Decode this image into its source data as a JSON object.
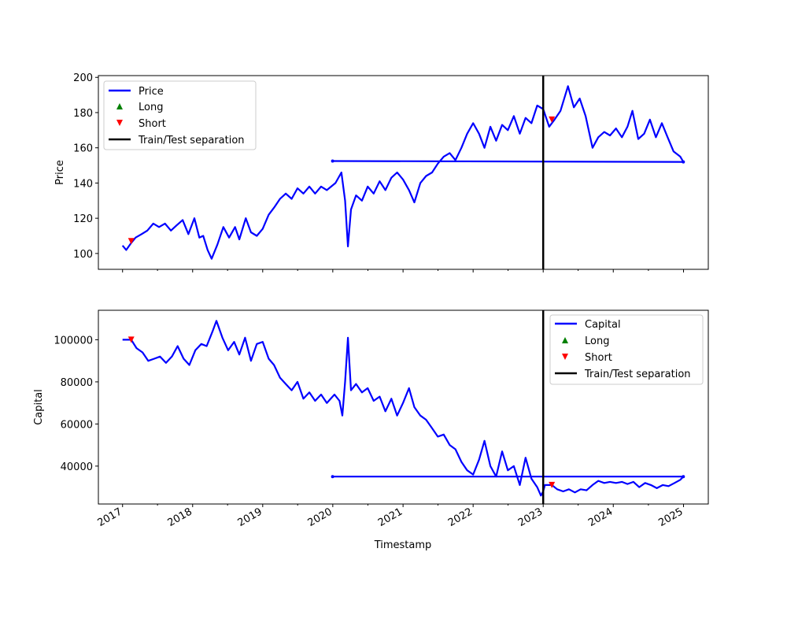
{
  "chart_data": [
    {
      "type": "line",
      "title": "",
      "xlabel": "",
      "ylabel": "Price",
      "xlim": [
        "2016-08-28",
        "2025-05-10"
      ],
      "ylim": [
        91,
        201
      ],
      "yticks": [
        100,
        120,
        140,
        160,
        180,
        200
      ],
      "xticks": [
        "2017-01-01",
        "2018-01-01",
        "2019-01-01",
        "2020-01-01",
        "2021-01-01",
        "2022-01-01",
        "2023-01-01",
        "2024-01-01",
        "2025-01-01"
      ],
      "xtick_labels": [],
      "grid": false,
      "legend_position": "upper left",
      "legend": [
        "Price",
        "Long",
        "Short",
        "Train/Test separation"
      ],
      "series": [
        {
          "name": "Price",
          "color": "#0000ff",
          "points": [
            [
              "2017-01-01",
              104.5
            ],
            [
              "2017-01-20",
              102
            ],
            [
              "2017-02-15",
              106
            ],
            [
              "2017-03-10",
              109
            ],
            [
              "2017-04-10",
              111
            ],
            [
              "2017-05-10",
              113
            ],
            [
              "2017-06-10",
              117
            ],
            [
              "2017-07-10",
              115
            ],
            [
              "2017-08-10",
              117
            ],
            [
              "2017-09-10",
              113
            ],
            [
              "2017-10-10",
              116
            ],
            [
              "2017-11-10",
              119
            ],
            [
              "2017-12-10",
              111
            ],
            [
              "2018-01-10",
              120
            ],
            [
              "2018-02-05",
              109
            ],
            [
              "2018-02-25",
              110
            ],
            [
              "2018-03-20",
              102
            ],
            [
              "2018-04-10",
              97
            ],
            [
              "2018-05-10",
              105
            ],
            [
              "2018-06-10",
              115
            ],
            [
              "2018-07-10",
              109
            ],
            [
              "2018-08-10",
              115
            ],
            [
              "2018-09-01",
              108
            ],
            [
              "2018-10-05",
              120
            ],
            [
              "2018-11-01",
              112
            ],
            [
              "2018-12-01",
              110
            ],
            [
              "2019-01-01",
              114
            ],
            [
              "2019-02-01",
              122
            ],
            [
              "2019-03-01",
              126
            ],
            [
              "2019-04-01",
              131
            ],
            [
              "2019-05-01",
              134
            ],
            [
              "2019-06-01",
              131
            ],
            [
              "2019-07-01",
              137
            ],
            [
              "2019-08-01",
              134
            ],
            [
              "2019-09-01",
              138
            ],
            [
              "2019-10-01",
              134
            ],
            [
              "2019-11-01",
              138
            ],
            [
              "2019-12-01",
              136
            ],
            [
              "2020-01-15",
              140
            ],
            [
              "2020-02-15",
              146
            ],
            [
              "2020-03-05",
              130
            ],
            [
              "2020-03-20",
              104
            ],
            [
              "2020-04-05",
              125
            ],
            [
              "2020-05-01",
              133
            ],
            [
              "2020-06-01",
              130
            ],
            [
              "2020-07-01",
              138
            ],
            [
              "2020-08-01",
              134
            ],
            [
              "2020-09-01",
              141
            ],
            [
              "2020-10-01",
              136
            ],
            [
              "2020-11-01",
              143
            ],
            [
              "2020-12-01",
              146
            ],
            [
              "2021-01-01",
              142
            ],
            [
              "2021-02-01",
              136
            ],
            [
              "2021-03-01",
              129
            ],
            [
              "2021-04-01",
              140
            ],
            [
              "2021-05-01",
              144
            ],
            [
              "2021-06-01",
              146
            ],
            [
              "2021-07-01",
              151
            ],
            [
              "2021-08-01",
              155
            ],
            [
              "2021-09-01",
              157
            ],
            [
              "2021-10-01",
              153
            ],
            [
              "2021-11-01",
              160
            ],
            [
              "2021-12-01",
              168
            ],
            [
              "2022-01-01",
              174
            ],
            [
              "2022-02-01",
              168
            ],
            [
              "2022-03-01",
              160
            ],
            [
              "2022-04-01",
              172
            ],
            [
              "2022-05-01",
              164
            ],
            [
              "2022-06-01",
              173
            ],
            [
              "2022-07-01",
              170
            ],
            [
              "2022-08-01",
              178
            ],
            [
              "2022-09-01",
              168
            ],
            [
              "2022-10-01",
              177
            ],
            [
              "2022-11-01",
              174
            ],
            [
              "2022-12-01",
              184
            ],
            [
              "2023-01-01",
              182
            ],
            [
              "2023-02-01",
              172
            ],
            [
              "2023-03-01",
              176
            ],
            [
              "2023-04-01",
              181
            ],
            [
              "2023-05-10",
              195
            ],
            [
              "2023-06-10",
              183
            ],
            [
              "2023-07-10",
              188
            ],
            [
              "2023-08-10",
              178
            ],
            [
              "2023-09-15",
              160
            ],
            [
              "2023-10-15",
              166
            ],
            [
              "2023-11-15",
              169
            ],
            [
              "2023-12-15",
              167
            ],
            [
              "2024-01-15",
              171
            ],
            [
              "2024-02-15",
              166
            ],
            [
              "2024-03-15",
              172
            ],
            [
              "2024-04-10",
              181
            ],
            [
              "2024-05-10",
              165
            ],
            [
              "2024-06-10",
              168
            ],
            [
              "2024-07-10",
              176
            ],
            [
              "2024-08-10",
              166
            ],
            [
              "2024-09-10",
              174
            ],
            [
              "2024-10-10",
              166
            ],
            [
              "2024-11-10",
              158
            ],
            [
              "2024-12-15",
              155
            ],
            [
              "2024-12-31",
              152
            ],
            [
              "2019-12-31",
              152.5
            ]
          ]
        },
        {
          "name": "Short",
          "color": "#ff0000",
          "marker": "triangle-down",
          "points": [
            [
              "2017-02-15",
              107
            ],
            [
              "2023-02-15",
              176
            ]
          ]
        }
      ],
      "vline": {
        "name": "Train/Test separation",
        "x": "2023-01-01",
        "color": "#000000"
      }
    },
    {
      "type": "line",
      "title": "",
      "xlabel": "Timestamp",
      "ylabel": "Capital",
      "xlim": [
        "2016-08-28",
        "2025-05-10"
      ],
      "ylim": [
        22000,
        114000
      ],
      "yticks": [
        40000,
        60000,
        80000,
        100000
      ],
      "xticks": [
        "2017-01-01",
        "2018-01-01",
        "2019-01-01",
        "2020-01-01",
        "2021-01-01",
        "2022-01-01",
        "2023-01-01",
        "2024-01-01",
        "2025-01-01"
      ],
      "xtick_labels": [
        "2017",
        "2018",
        "2019",
        "2020",
        "2021",
        "2022",
        "2023",
        "2024",
        "2025"
      ],
      "grid": false,
      "legend_position": "upper right",
      "legend": [
        "Capital",
        "Long",
        "Short",
        "Train/Test separation"
      ],
      "series": [
        {
          "name": "Capital",
          "color": "#0000ff",
          "points": [
            [
              "2017-01-01",
              100000
            ],
            [
              "2017-02-15",
              100000
            ],
            [
              "2017-03-15",
              96000
            ],
            [
              "2017-04-15",
              94000
            ],
            [
              "2017-05-15",
              90000
            ],
            [
              "2017-06-15",
              91000
            ],
            [
              "2017-07-15",
              92000
            ],
            [
              "2017-08-15",
              89000
            ],
            [
              "2017-09-15",
              92000
            ],
            [
              "2017-10-15",
              97000
            ],
            [
              "2017-11-15",
              91000
            ],
            [
              "2017-12-15",
              88000
            ],
            [
              "2018-01-15",
              95000
            ],
            [
              "2018-02-15",
              98000
            ],
            [
              "2018-03-15",
              97000
            ],
            [
              "2018-04-15",
              104000
            ],
            [
              "2018-05-05",
              109000
            ],
            [
              "2018-06-05",
              101000
            ],
            [
              "2018-07-05",
              95000
            ],
            [
              "2018-08-05",
              99000
            ],
            [
              "2018-09-01",
              93000
            ],
            [
              "2018-10-01",
              101000
            ],
            [
              "2018-11-01",
              90000
            ],
            [
              "2018-12-01",
              98000
            ],
            [
              "2019-01-01",
              99000
            ],
            [
              "2019-02-01",
              91000
            ],
            [
              "2019-03-01",
              88000
            ],
            [
              "2019-04-01",
              82000
            ],
            [
              "2019-05-01",
              79000
            ],
            [
              "2019-06-01",
              76000
            ],
            [
              "2019-07-01",
              80000
            ],
            [
              "2019-08-01",
              72000
            ],
            [
              "2019-09-01",
              75000
            ],
            [
              "2019-10-01",
              71000
            ],
            [
              "2019-11-01",
              74000
            ],
            [
              "2019-12-01",
              70000
            ],
            [
              "2020-01-10",
              74000
            ],
            [
              "2020-02-05",
              71000
            ],
            [
              "2020-02-20",
              64000
            ],
            [
              "2020-03-05",
              80000
            ],
            [
              "2020-03-20",
              101000
            ],
            [
              "2020-04-05",
              76000
            ],
            [
              "2020-05-01",
              79000
            ],
            [
              "2020-06-01",
              75000
            ],
            [
              "2020-07-01",
              77000
            ],
            [
              "2020-08-01",
              71000
            ],
            [
              "2020-09-01",
              73000
            ],
            [
              "2020-10-01",
              66000
            ],
            [
              "2020-11-01",
              72000
            ],
            [
              "2020-12-01",
              64000
            ],
            [
              "2021-01-01",
              70000
            ],
            [
              "2021-02-01",
              77000
            ],
            [
              "2021-03-01",
              68000
            ],
            [
              "2021-04-01",
              64000
            ],
            [
              "2021-05-01",
              62000
            ],
            [
              "2021-06-01",
              58000
            ],
            [
              "2021-07-01",
              54000
            ],
            [
              "2021-08-01",
              55000
            ],
            [
              "2021-09-01",
              50000
            ],
            [
              "2021-10-01",
              48000
            ],
            [
              "2021-11-01",
              42000
            ],
            [
              "2021-12-01",
              38000
            ],
            [
              "2022-01-01",
              36000
            ],
            [
              "2022-02-01",
              43000
            ],
            [
              "2022-03-01",
              52000
            ],
            [
              "2022-04-01",
              40000
            ],
            [
              "2022-05-01",
              35000
            ],
            [
              "2022-06-01",
              47000
            ],
            [
              "2022-07-01",
              38000
            ],
            [
              "2022-08-01",
              40000
            ],
            [
              "2022-09-01",
              31000
            ],
            [
              "2022-10-01",
              44000
            ],
            [
              "2022-11-01",
              34000
            ],
            [
              "2022-12-01",
              30000
            ],
            [
              "2022-12-20",
              26000
            ],
            [
              "2023-01-01",
              28000
            ],
            [
              "2023-01-10",
              31000
            ],
            [
              "2023-02-15",
              31000
            ],
            [
              "2023-03-15",
              29000
            ],
            [
              "2023-04-15",
              28000
            ],
            [
              "2023-05-15",
              29000
            ],
            [
              "2023-06-15",
              27500
            ],
            [
              "2023-07-15",
              29000
            ],
            [
              "2023-08-15",
              28500
            ],
            [
              "2023-09-15",
              31000
            ],
            [
              "2023-10-15",
              33000
            ],
            [
              "2023-11-15",
              32000
            ],
            [
              "2023-12-15",
              32500
            ],
            [
              "2024-01-15",
              32000
            ],
            [
              "2024-02-15",
              32500
            ],
            [
              "2024-03-15",
              31500
            ],
            [
              "2024-04-15",
              32500
            ],
            [
              "2024-05-15",
              30000
            ],
            [
              "2024-06-15",
              32000
            ],
            [
              "2024-07-15",
              31000
            ],
            [
              "2024-08-15",
              29500
            ],
            [
              "2024-09-15",
              31000
            ],
            [
              "2024-10-15",
              30500
            ],
            [
              "2024-11-15",
              32000
            ],
            [
              "2024-12-15",
              33500
            ],
            [
              "2024-12-31",
              35000
            ],
            [
              "2019-12-31",
              35000
            ]
          ]
        },
        {
          "name": "Short",
          "color": "#ff0000",
          "marker": "triangle-down",
          "points": [
            [
              "2017-02-15",
              100000
            ],
            [
              "2023-02-15",
              31000
            ]
          ]
        }
      ],
      "vline": {
        "name": "Train/Test separation",
        "x": "2023-01-01",
        "color": "#000000"
      }
    }
  ],
  "legend_colors": {
    "long": "#008000",
    "short": "#ff0000",
    "separator": "#000000",
    "line": "#0000ff"
  }
}
